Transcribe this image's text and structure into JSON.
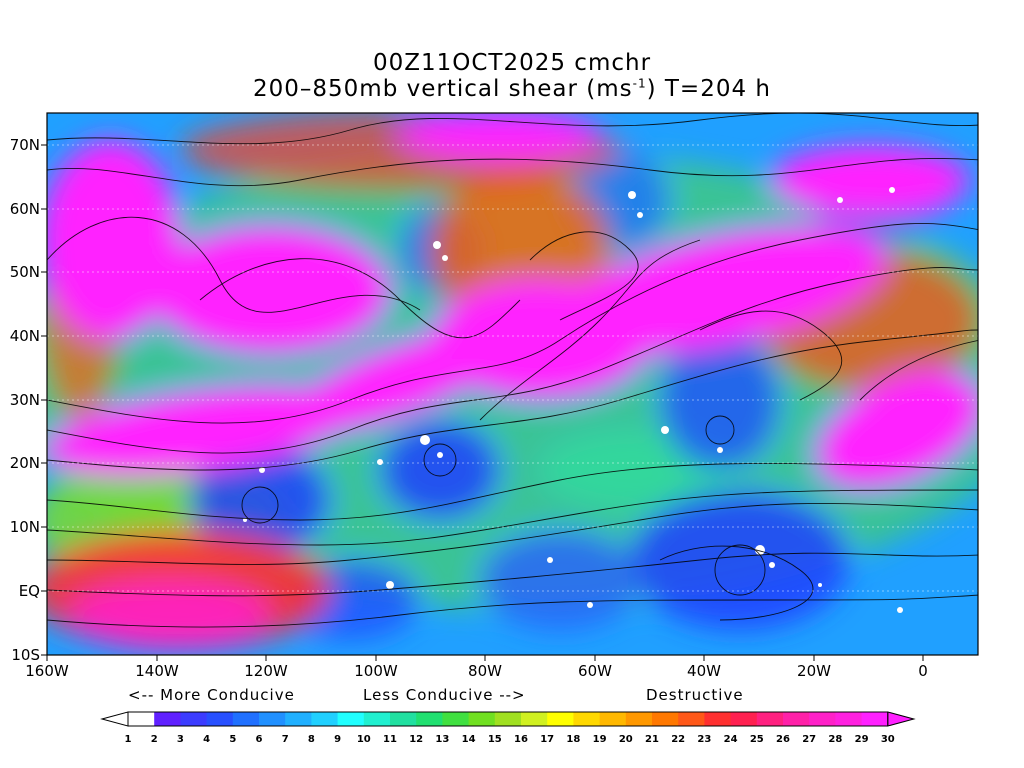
{
  "title": {
    "line1": "00Z11OCT2025 cmchr",
    "line2_prefix": "200–850mb vertical shear (ms",
    "line2_sup": "-1",
    "line2_suffix": ") T=204 h"
  },
  "axes": {
    "lat_labels": [
      "70N",
      "60N",
      "50N",
      "40N",
      "30N",
      "20N",
      "10N",
      "EQ",
      "10S"
    ],
    "lat_values": [
      70,
      60,
      50,
      40,
      30,
      20,
      10,
      0,
      -10
    ],
    "lon_labels": [
      "160W",
      "140W",
      "120W",
      "100W",
      "80W",
      "60W",
      "40W",
      "20W",
      "0"
    ],
    "lon_values": [
      -160,
      -140,
      -120,
      -100,
      -80,
      -60,
      -40,
      -20,
      0
    ],
    "lat_range": [
      -10,
      75
    ],
    "lon_range": [
      -160,
      10
    ]
  },
  "legend": {
    "more_conducive": "<-- More Conducive",
    "less_conducive": "Less Conducive -->",
    "destructive": "Destructive",
    "colorbar_values": [
      "1",
      "2",
      "3",
      "4",
      "5",
      "6",
      "7",
      "8",
      "9",
      "10",
      "11",
      "12",
      "13",
      "14",
      "15",
      "16",
      "17",
      "18",
      "19",
      "20",
      "21",
      "22",
      "23",
      "24",
      "25",
      "26",
      "27",
      "28",
      "29",
      "30"
    ],
    "colorbar_colors": [
      "#ffffff",
      "#6020ff",
      "#3c3cff",
      "#2850ff",
      "#2070ff",
      "#2090ff",
      "#20b0ff",
      "#20d0ff",
      "#20ffff",
      "#20f0d0",
      "#20e0a0",
      "#20e070",
      "#40e040",
      "#70e020",
      "#a0e020",
      "#d0f020",
      "#ffff00",
      "#ffd800",
      "#ffb800",
      "#ff9800",
      "#ff7800",
      "#ff5818",
      "#ff3030",
      "#ff2050",
      "#ff2080",
      "#ff20a8",
      "#ff20c8",
      "#ff20e0",
      "#ff20ff"
    ]
  }
}
